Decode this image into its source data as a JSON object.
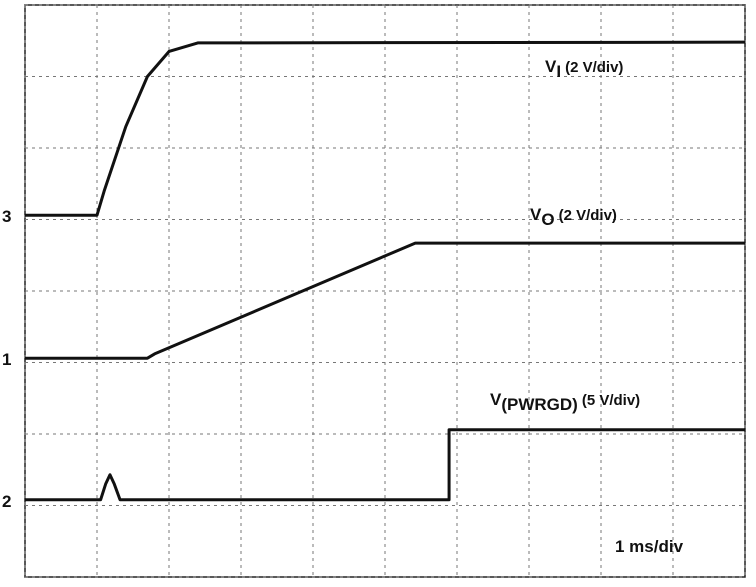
{
  "chart_data": {
    "type": "line",
    "xlim": [
      0,
      10
    ],
    "ylim": [
      0,
      8
    ],
    "xticks": [
      0,
      1,
      2,
      3,
      4,
      5,
      6,
      7,
      8,
      9,
      10
    ],
    "yticks": [
      0,
      1,
      2,
      3,
      4,
      5,
      6,
      7,
      8
    ],
    "grid": true,
    "timebase": "1 ms/div",
    "series": [
      {
        "marker": "3",
        "label": {
          "symbol": "V",
          "subscript": "I",
          "scale": "(2 V/div)"
        },
        "color": "#111111",
        "x": [
          0,
          1.0,
          1.1,
          1.4,
          1.7,
          2.0,
          2.4,
          10
        ],
        "values": [
          5.06,
          5.06,
          5.4,
          6.3,
          7.0,
          7.35,
          7.47,
          7.48
        ]
      },
      {
        "marker": "1",
        "label": {
          "symbol": "V",
          "subscript": "O",
          "scale": "(2 V/div)"
        },
        "color": "#111111",
        "x": [
          0,
          1.7,
          1.8,
          5.42,
          10
        ],
        "values": [
          3.06,
          3.06,
          3.12,
          4.67,
          4.67
        ]
      },
      {
        "marker": "2",
        "label": {
          "symbol": "V",
          "subscript": "(PWRGD)",
          "scale": "(5 V/div)"
        },
        "color": "#111111",
        "x": [
          0,
          1.05,
          1.12,
          1.18,
          1.24,
          1.32,
          5.89,
          5.89,
          10
        ],
        "values": [
          1.08,
          1.08,
          1.3,
          1.43,
          1.3,
          1.08,
          1.08,
          2.06,
          2.06
        ]
      }
    ]
  }
}
